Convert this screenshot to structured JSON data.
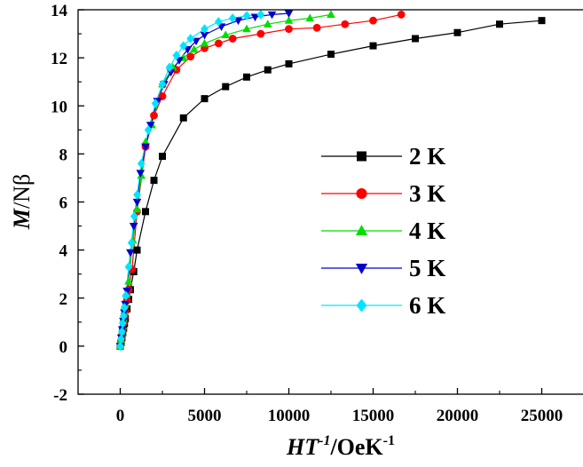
{
  "chart_data": {
    "type": "scatter",
    "xlabel": {
      "main": "HT",
      "sup1": "-1",
      "unit": "/OeK",
      "sup2": "-1"
    },
    "ylabel": {
      "italic": "M",
      "rest": "/Nβ"
    },
    "xlim": [
      -2500,
      27500
    ],
    "ylim": [
      -2,
      14
    ],
    "xticks": [
      0,
      5000,
      10000,
      15000,
      20000,
      25000
    ],
    "yticks": [
      -2,
      0,
      2,
      4,
      6,
      8,
      10,
      12,
      14
    ],
    "legend_position": "right",
    "series": [
      {
        "name": "2 K",
        "color": "#000000",
        "marker": "square",
        "x": [
          0,
          50,
          100,
          150,
          200,
          250,
          300,
          400,
          500,
          600,
          800,
          1000,
          1500,
          2000,
          2500,
          3750,
          5000,
          6250,
          7500,
          8750,
          10000,
          12500,
          15000,
          17500,
          20000,
          22500,
          25000
        ],
        "y": [
          0,
          0.15,
          0.35,
          0.55,
          0.75,
          0.95,
          1.15,
          1.55,
          1.95,
          2.35,
          3.1,
          4.0,
          5.6,
          6.9,
          7.9,
          9.5,
          10.3,
          10.8,
          11.2,
          11.5,
          11.75,
          12.15,
          12.5,
          12.8,
          13.05,
          13.4,
          13.55
        ]
      },
      {
        "name": "3 K",
        "color": "#ff0000",
        "marker": "circle",
        "x": [
          0,
          50,
          100,
          150,
          200,
          250,
          300,
          400,
          500,
          700,
          1000,
          1500,
          2000,
          2500,
          3333,
          4167,
          5000,
          5833,
          6667,
          8333,
          10000,
          11667,
          13333,
          15000,
          16667
        ],
        "y": [
          0,
          0.2,
          0.45,
          0.7,
          0.95,
          1.2,
          1.45,
          1.9,
          2.35,
          3.2,
          5.6,
          8.3,
          9.6,
          10.4,
          11.5,
          12.05,
          12.4,
          12.6,
          12.8,
          13.0,
          13.2,
          13.25,
          13.4,
          13.55,
          13.8
        ]
      },
      {
        "name": "4 K",
        "color": "#00dd00",
        "marker": "triangle-up",
        "x": [
          0,
          50,
          100,
          150,
          200,
          250,
          300,
          375,
          500,
          750,
          1000,
          1250,
          1500,
          1875,
          2500,
          3125,
          3750,
          4375,
          5000,
          6250,
          7500,
          8750,
          10000,
          11250,
          12500
        ],
        "y": [
          0,
          0.25,
          0.55,
          0.85,
          1.15,
          1.45,
          1.75,
          2.15,
          2.7,
          4.4,
          5.7,
          7.1,
          8.5,
          9.2,
          10.9,
          11.6,
          12.0,
          12.35,
          12.6,
          12.95,
          13.2,
          13.4,
          13.55,
          13.65,
          13.8
        ]
      },
      {
        "name": "5 K",
        "color": "#0000cc",
        "marker": "triangle-down",
        "x": [
          0,
          60,
          120,
          180,
          240,
          300,
          400,
          600,
          800,
          1000,
          1200,
          1500,
          1800,
          2200,
          2600,
          3000,
          3500,
          4000,
          4500,
          5000,
          6000,
          7000,
          8000,
          9000,
          10000
        ],
        "y": [
          0,
          0.35,
          0.7,
          1.05,
          1.4,
          1.75,
          2.3,
          3.9,
          5.0,
          6.0,
          7.2,
          8.3,
          9.2,
          10.2,
          10.9,
          11.4,
          11.9,
          12.35,
          12.7,
          12.95,
          13.3,
          13.55,
          13.7,
          13.8,
          13.85
        ]
      },
      {
        "name": "6 K",
        "color": "#00e5ff",
        "marker": "diamond",
        "x": [
          0,
          50,
          100,
          150,
          200,
          250,
          333,
          500,
          667,
          833,
          1000,
          1250,
          1667,
          2083,
          2500,
          2917,
          3333,
          3750,
          4167,
          5000,
          5833,
          6667,
          7500,
          8333
        ],
        "y": [
          0,
          0.3,
          0.6,
          0.95,
          1.25,
          1.6,
          2.1,
          3.3,
          4.3,
          5.4,
          6.3,
          7.6,
          9.0,
          10.1,
          10.9,
          11.6,
          12.1,
          12.5,
          12.8,
          13.2,
          13.5,
          13.65,
          13.75,
          13.8
        ]
      }
    ]
  }
}
